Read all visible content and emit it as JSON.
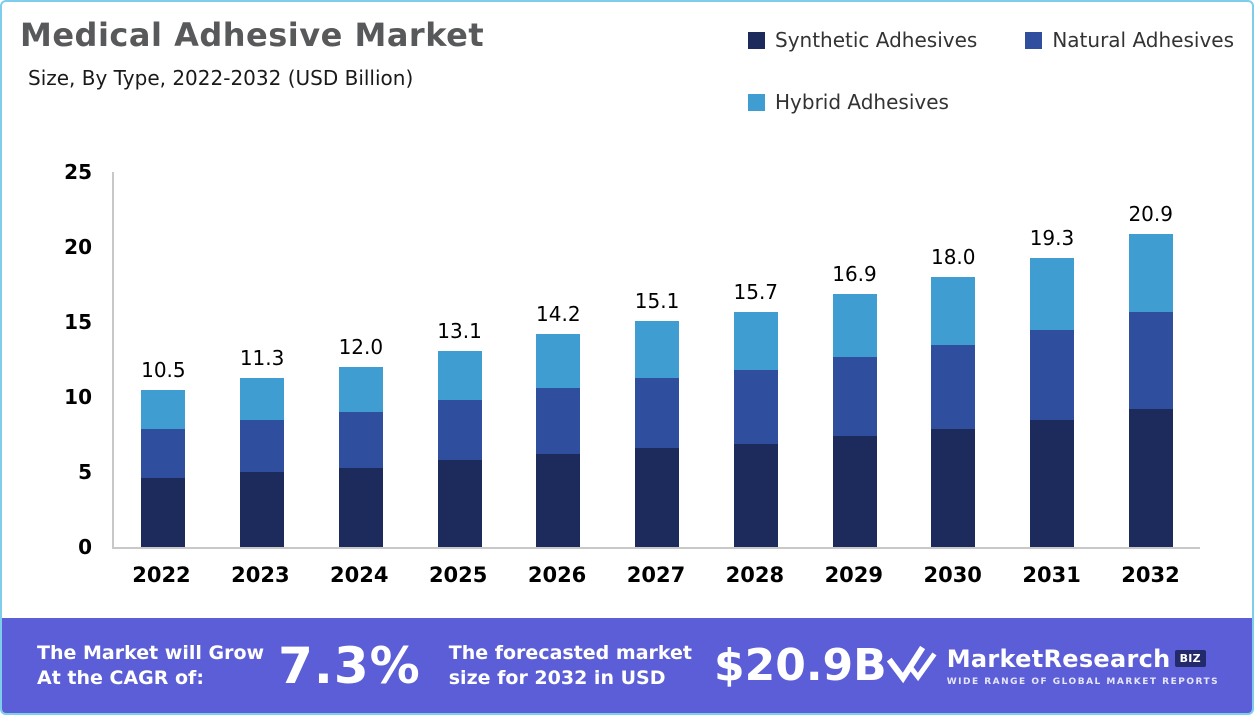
{
  "page": {
    "title": "Medical Adhesive Market",
    "subtitle": "Size, By Type, 2022-2032 (USD Billion)"
  },
  "legend": {
    "items": [
      {
        "label": "Synthetic Adhesives",
        "color": "#1d2a5c"
      },
      {
        "label": "Natural Adhesives",
        "color": "#2f4f9e"
      },
      {
        "label": "Hybrid Adhesives",
        "color": "#3f9dd1"
      }
    ]
  },
  "chart_data": {
    "type": "bar",
    "stacked": true,
    "title": "Medical Adhesive Market",
    "subtitle": "Size, By Type, 2022-2032 (USD Billion)",
    "xlabel": "",
    "ylabel": "USD Billion",
    "ylim": [
      0,
      25
    ],
    "yticks": [
      0,
      5,
      10,
      15,
      20,
      25
    ],
    "grid": false,
    "legend_position": "top-right",
    "categories": [
      "2022",
      "2023",
      "2024",
      "2025",
      "2026",
      "2027",
      "2028",
      "2029",
      "2030",
      "2031",
      "2032"
    ],
    "series": [
      {
        "name": "Synthetic Adhesives",
        "color": "#1d2a5c",
        "values": [
          4.6,
          5.0,
          5.3,
          5.8,
          6.2,
          6.6,
          6.9,
          7.4,
          7.9,
          8.5,
          9.2
        ]
      },
      {
        "name": "Natural Adhesives",
        "color": "#2f4f9e",
        "values": [
          3.3,
          3.5,
          3.7,
          4.0,
          4.4,
          4.7,
          4.9,
          5.3,
          5.6,
          6.0,
          6.5
        ]
      },
      {
        "name": "Hybrid Adhesives",
        "color": "#3f9dd1",
        "values": [
          2.6,
          2.8,
          3.0,
          3.3,
          3.6,
          3.8,
          3.9,
          4.2,
          4.5,
          4.8,
          5.2
        ]
      }
    ],
    "totals": [
      10.5,
      11.3,
      12.0,
      13.1,
      14.2,
      15.1,
      15.7,
      16.9,
      18.0,
      19.3,
      20.9
    ]
  },
  "banner": {
    "background": "#5b5ed6",
    "cagr_label_line1": "The Market will Grow",
    "cagr_label_line2": "At the CAGR of:",
    "cagr_value": "7.3%",
    "forecast_label_line1": "The forecasted market",
    "forecast_label_line2": "size for 2032 in USD",
    "forecast_value": "$20.9B",
    "logo": {
      "name": "MarketResearch",
      "suffix": "BIZ",
      "tagline": "WIDE RANGE OF GLOBAL MARKET REPORTS"
    }
  }
}
